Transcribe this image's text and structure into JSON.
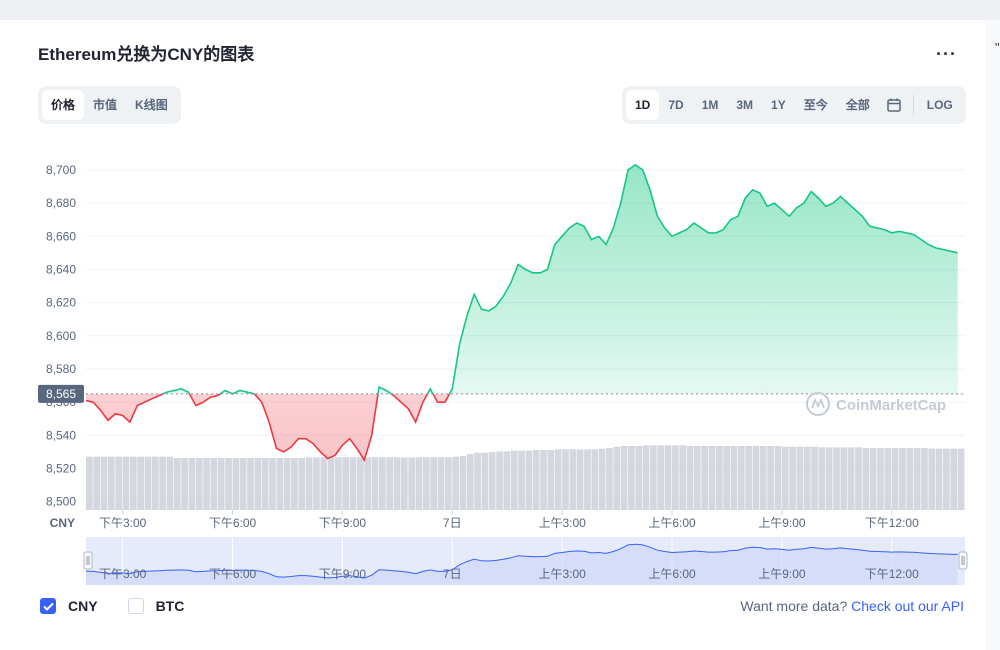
{
  "title": "Ethereum兑换为CNY的图表",
  "more_icon": "more-dots-icon",
  "tabs_left": [
    {
      "label": "价格",
      "active": true
    },
    {
      "label": "市值",
      "active": false
    },
    {
      "label": "K线图",
      "active": false
    }
  ],
  "tabs_right": [
    {
      "label": "1D",
      "active": true
    },
    {
      "label": "7D",
      "active": false
    },
    {
      "label": "1M",
      "active": false
    },
    {
      "label": "3M",
      "active": false
    },
    {
      "label": "1Y",
      "active": false
    },
    {
      "label": "至今",
      "active": false
    },
    {
      "label": "全部",
      "active": false
    }
  ],
  "calendar_icon": "calendar-icon",
  "log_label": "LOG",
  "watermark": "CoinMarketCap",
  "currency_axis_label": "CNY",
  "current_price_label": "8,565",
  "legend": {
    "cny_label": "CNY",
    "cny_checked": true,
    "btc_label": "BTC",
    "btc_checked": false
  },
  "footer": {
    "text": "Want more data?",
    "link": "Check out our API"
  },
  "colors": {
    "up": "#16c784",
    "down": "#ea3943",
    "nav_line": "#3861fb",
    "volume": "#d4d8de"
  },
  "chart_data": {
    "type": "area",
    "baseline": 8565,
    "ylim": [
      8495,
      8715
    ],
    "yticks": [
      8500,
      8520,
      8540,
      8560,
      8580,
      8600,
      8620,
      8640,
      8660,
      8680,
      8700
    ],
    "yticks_labels": [
      "8,500",
      "8,520",
      "8,540",
      "8,560",
      "8,580",
      "8,600",
      "8,620",
      "8,640",
      "8,660",
      "8,680",
      "8,700"
    ],
    "xlim": [
      0,
      24
    ],
    "xticks": [
      1,
      4,
      7,
      10,
      13,
      16,
      19,
      22
    ],
    "xtick_labels": [
      "下午3:00",
      "下午6:00",
      "下午9:00",
      "7日",
      "上午3:00",
      "上午6:00",
      "上午9:00",
      "下午12:00"
    ],
    "x_hours": [
      0,
      0.2,
      0.4,
      0.6,
      0.8,
      1.0,
      1.2,
      1.4,
      1.6,
      1.8,
      2.0,
      2.2,
      2.4,
      2.6,
      2.8,
      3.0,
      3.2,
      3.4,
      3.6,
      3.8,
      4.0,
      4.2,
      4.4,
      4.6,
      4.8,
      5.0,
      5.2,
      5.4,
      5.6,
      5.8,
      6.0,
      6.2,
      6.4,
      6.6,
      6.8,
      7.0,
      7.2,
      7.4,
      7.6,
      7.8,
      8.0,
      8.2,
      8.4,
      8.6,
      8.8,
      9.0,
      9.2,
      9.4,
      9.6,
      9.8,
      10.0,
      10.2,
      10.4,
      10.6,
      10.8,
      11.0,
      11.2,
      11.4,
      11.6,
      11.8,
      12.0,
      12.2,
      12.4,
      12.6,
      12.8,
      13.0,
      13.2,
      13.4,
      13.6,
      13.8,
      14.0,
      14.2,
      14.4,
      14.6,
      14.8,
      15.0,
      15.2,
      15.4,
      15.6,
      15.8,
      16.0,
      16.2,
      16.4,
      16.6,
      16.8,
      17.0,
      17.2,
      17.4,
      17.6,
      17.8,
      18.0,
      18.2,
      18.4,
      18.6,
      18.8,
      19.0,
      19.2,
      19.4,
      19.6,
      19.8,
      20.0,
      20.2,
      20.4,
      20.6,
      20.8,
      21.0,
      21.2,
      21.4,
      21.6,
      21.8,
      22.0,
      22.2,
      22.4,
      22.6,
      22.8,
      23.0,
      23.2,
      23.4,
      23.6,
      23.8
    ],
    "prices": [
      8561,
      8560,
      8555,
      8549,
      8553,
      8552,
      8548,
      8558,
      8560,
      8562,
      8564,
      8566,
      8567,
      8568,
      8566,
      8558,
      8560,
      8563,
      8564,
      8567,
      8565,
      8567,
      8566,
      8565,
      8560,
      8548,
      8532,
      8530,
      8533,
      8538,
      8538,
      8535,
      8530,
      8526,
      8528,
      8534,
      8538,
      8532,
      8525,
      8540,
      8569,
      8567,
      8564,
      8560,
      8556,
      8548,
      8560,
      8568,
      8560,
      8560,
      8568,
      8595,
      8612,
      8625,
      8616,
      8615,
      8618,
      8624,
      8632,
      8643,
      8640,
      8638,
      8638,
      8640,
      8655,
      8660,
      8665,
      8668,
      8666,
      8658,
      8660,
      8655,
      8665,
      8680,
      8700,
      8703,
      8700,
      8688,
      8672,
      8665,
      8660,
      8662,
      8664,
      8668,
      8665,
      8662,
      8662,
      8664,
      8670,
      8672,
      8683,
      8688,
      8686,
      8678,
      8680,
      8676,
      8672,
      8677,
      8680,
      8687,
      8683,
      8678,
      8680,
      8684,
      8680,
      8676,
      8672,
      8666,
      8665,
      8664,
      8662,
      8663,
      8662,
      8661,
      8658,
      8655,
      8653,
      8652,
      8651,
      8650
    ],
    "volume_ylim": [
      0,
      12
    ],
    "volume": [
      8.0,
      8.0,
      8.0,
      8.0,
      8.0,
      8.0,
      8.0,
      8.0,
      8.0,
      8.0,
      8.0,
      8.0,
      7.8,
      7.8,
      7.8,
      7.8,
      7.8,
      7.8,
      7.8,
      7.8,
      7.8,
      7.8,
      7.8,
      7.8,
      7.8,
      7.8,
      7.8,
      7.8,
      7.8,
      7.8,
      7.9,
      7.9,
      7.9,
      7.9,
      7.9,
      7.9,
      7.9,
      7.9,
      7.9,
      7.9,
      7.9,
      7.9,
      7.9,
      7.9,
      7.9,
      7.9,
      7.9,
      7.9,
      7.9,
      7.9,
      8.0,
      8.1,
      8.4,
      8.6,
      8.6,
      8.7,
      8.8,
      8.8,
      8.9,
      8.9,
      8.9,
      9.0,
      9.0,
      9.0,
      9.1,
      9.1,
      9.1,
      9.1,
      9.1,
      9.1,
      9.2,
      9.3,
      9.5,
      9.6,
      9.6,
      9.6,
      9.7,
      9.7,
      9.7,
      9.7,
      9.7,
      9.7,
      9.6,
      9.6,
      9.6,
      9.6,
      9.6,
      9.6,
      9.6,
      9.6,
      9.6,
      9.6,
      9.6,
      9.6,
      9.6,
      9.5,
      9.5,
      9.5,
      9.5,
      9.5,
      9.4,
      9.4,
      9.4,
      9.4,
      9.4,
      9.4,
      9.3,
      9.3,
      9.3,
      9.3,
      9.3,
      9.3,
      9.3,
      9.3,
      9.3,
      9.2,
      9.2,
      9.2,
      9.2,
      9.2
    ],
    "nav_range": [
      0,
      23.8
    ]
  }
}
